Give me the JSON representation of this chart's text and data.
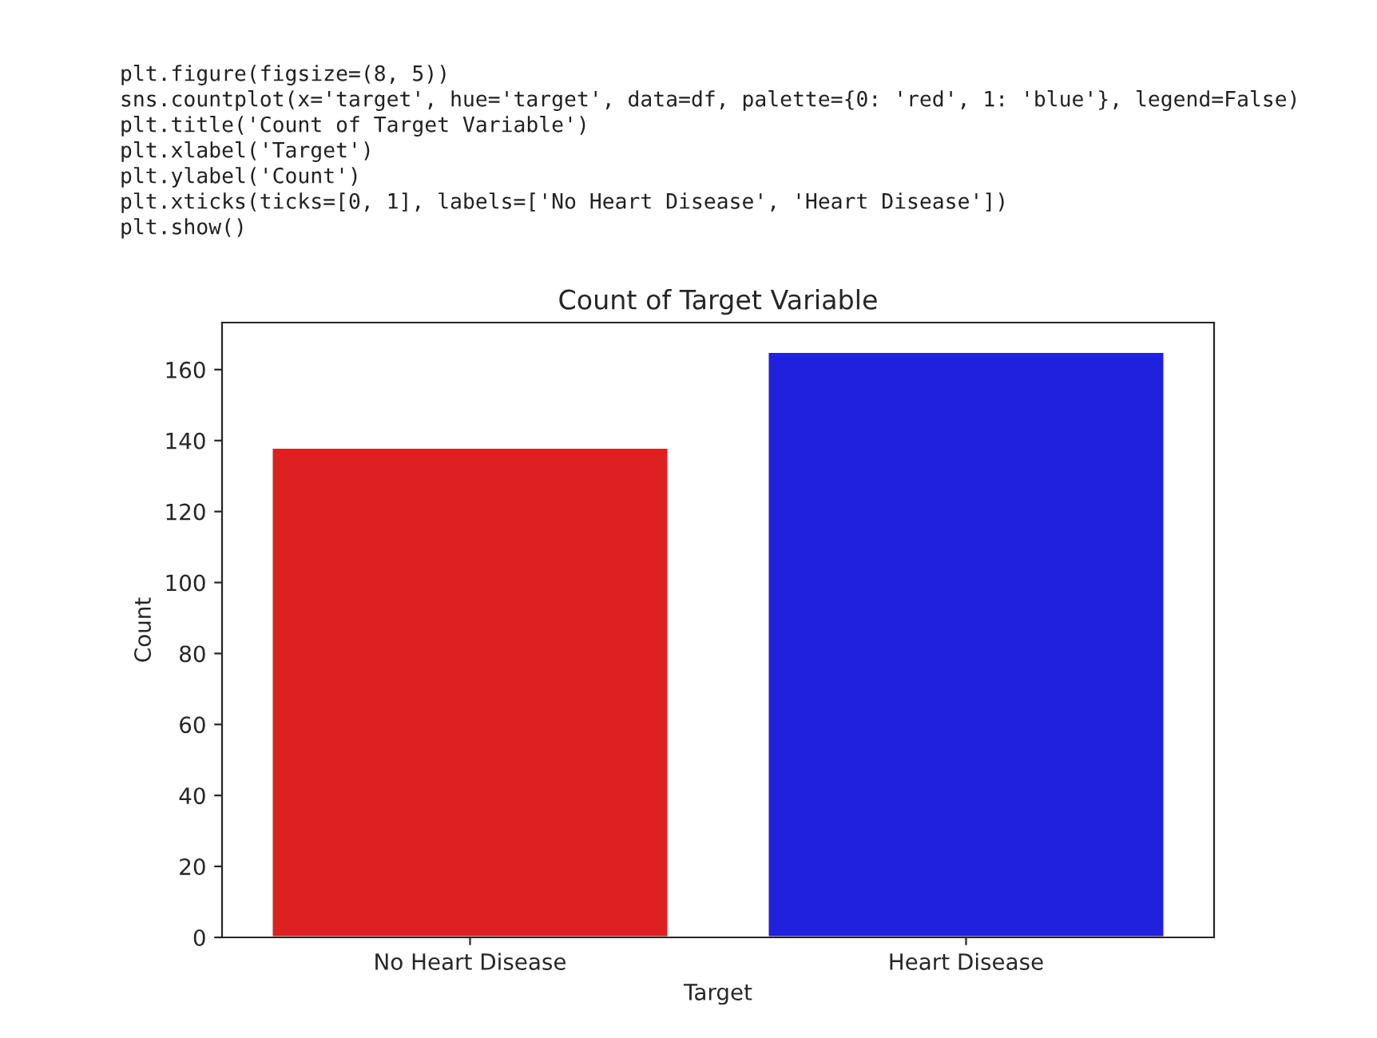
{
  "chart_data": {
    "type": "bar",
    "title": "Count of Target Variable",
    "xlabel": "Target",
    "ylabel": "Count",
    "categories": [
      "No Heart Disease",
      "Heart Disease"
    ],
    "values": [
      138,
      165
    ],
    "colors": [
      "#df2020",
      "#2020df"
    ],
    "ylim": [
      0,
      173.25
    ],
    "yticks": [
      0,
      20,
      40,
      60,
      80,
      100,
      120,
      140,
      160
    ],
    "grid": false,
    "legend": false,
    "annotations": [
      "plt.figure(figsize=(8, 5))",
      "sns.countplot(x='target', hue='target', data=df, palette={0: 'red', 1: 'blue'}, legend=False)",
      "plt.title('Count of Target Variable')",
      "plt.xlabel('Target')",
      "plt.ylabel('Count')",
      "plt.xticks(ticks=[0, 1], labels=['No Heart Disease', 'Heart Disease'])",
      "plt.show()"
    ]
  }
}
